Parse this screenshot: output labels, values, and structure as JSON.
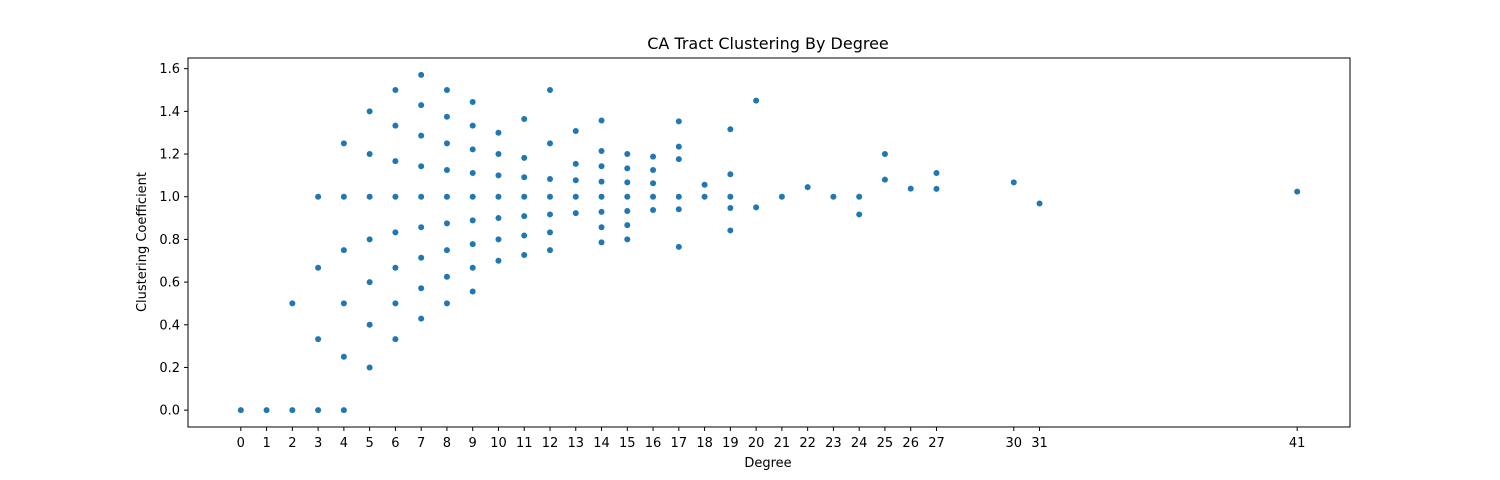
{
  "chart_data": {
    "type": "scatter",
    "title": "CA Tract Clustering By Degree",
    "xlabel": "Degree",
    "ylabel": "Clustering Coefficient",
    "xlim": [
      -2.05,
      43.05
    ],
    "ylim": [
      -0.079,
      1.65
    ],
    "xticks": [
      0,
      1,
      2,
      3,
      4,
      5,
      6,
      7,
      8,
      9,
      10,
      11,
      12,
      13,
      14,
      15,
      16,
      17,
      18,
      19,
      20,
      21,
      22,
      23,
      24,
      25,
      26,
      27,
      30,
      31,
      41
    ],
    "yticks": [
      "0.0",
      "0.2",
      "0.4",
      "0.6",
      "0.8",
      "1.0",
      "1.2",
      "1.4",
      "1.6"
    ],
    "grid": false,
    "marker_color": "#1f77b4",
    "points": [
      [
        0,
        0.0
      ],
      [
        1,
        0.0
      ],
      [
        2,
        0.0
      ],
      [
        2,
        0.5
      ],
      [
        3,
        0.0
      ],
      [
        3,
        0.333
      ],
      [
        3,
        0.667
      ],
      [
        3,
        1.0
      ],
      [
        4,
        0.0
      ],
      [
        4,
        0.25
      ],
      [
        4,
        0.5
      ],
      [
        4,
        0.75
      ],
      [
        4,
        1.0
      ],
      [
        4,
        1.25
      ],
      [
        5,
        0.2
      ],
      [
        5,
        0.4
      ],
      [
        5,
        0.6
      ],
      [
        5,
        0.8
      ],
      [
        5,
        1.0
      ],
      [
        5,
        1.2
      ],
      [
        5,
        1.4
      ],
      [
        6,
        0.333
      ],
      [
        6,
        0.5
      ],
      [
        6,
        0.667
      ],
      [
        6,
        0.833
      ],
      [
        6,
        1.0
      ],
      [
        6,
        1.167
      ],
      [
        6,
        1.333
      ],
      [
        6,
        1.5
      ],
      [
        7,
        0.429
      ],
      [
        7,
        0.571
      ],
      [
        7,
        0.714
      ],
      [
        7,
        0.857
      ],
      [
        7,
        1.0
      ],
      [
        7,
        1.143
      ],
      [
        7,
        1.286
      ],
      [
        7,
        1.429
      ],
      [
        7,
        1.571
      ],
      [
        8,
        0.5
      ],
      [
        8,
        0.625
      ],
      [
        8,
        0.75
      ],
      [
        8,
        0.875
      ],
      [
        8,
        1.0
      ],
      [
        8,
        1.125
      ],
      [
        8,
        1.25
      ],
      [
        8,
        1.375
      ],
      [
        8,
        1.5
      ],
      [
        9,
        0.556
      ],
      [
        9,
        0.667
      ],
      [
        9,
        0.778
      ],
      [
        9,
        0.889
      ],
      [
        9,
        1.0
      ],
      [
        9,
        1.111
      ],
      [
        9,
        1.222
      ],
      [
        9,
        1.333
      ],
      [
        9,
        1.444
      ],
      [
        10,
        0.7
      ],
      [
        10,
        0.8
      ],
      [
        10,
        0.9
      ],
      [
        10,
        1.0
      ],
      [
        10,
        1.1
      ],
      [
        10,
        1.2
      ],
      [
        10,
        1.3
      ],
      [
        11,
        0.727
      ],
      [
        11,
        0.818
      ],
      [
        11,
        0.909
      ],
      [
        11,
        1.0
      ],
      [
        11,
        1.091
      ],
      [
        11,
        1.182
      ],
      [
        11,
        1.364
      ],
      [
        12,
        0.75
      ],
      [
        12,
        0.833
      ],
      [
        12,
        0.917
      ],
      [
        12,
        1.0
      ],
      [
        12,
        1.083
      ],
      [
        12,
        1.25
      ],
      [
        12,
        1.5
      ],
      [
        13,
        0.923
      ],
      [
        13,
        1.0
      ],
      [
        13,
        1.077
      ],
      [
        13,
        1.154
      ],
      [
        13,
        1.308
      ],
      [
        14,
        0.786
      ],
      [
        14,
        0.857
      ],
      [
        14,
        0.929
      ],
      [
        14,
        1.0
      ],
      [
        14,
        1.071
      ],
      [
        14,
        1.143
      ],
      [
        14,
        1.214
      ],
      [
        14,
        1.357
      ],
      [
        15,
        0.8
      ],
      [
        15,
        0.867
      ],
      [
        15,
        0.933
      ],
      [
        15,
        1.0
      ],
      [
        15,
        1.067
      ],
      [
        15,
        1.133
      ],
      [
        15,
        1.2
      ],
      [
        16,
        0.938
      ],
      [
        16,
        1.0
      ],
      [
        16,
        1.063
      ],
      [
        16,
        1.125
      ],
      [
        16,
        1.188
      ],
      [
        17,
        0.765
      ],
      [
        17,
        0.941
      ],
      [
        17,
        1.0
      ],
      [
        17,
        1.176
      ],
      [
        17,
        1.235
      ],
      [
        17,
        1.353
      ],
      [
        18,
        1.0
      ],
      [
        18,
        1.056
      ],
      [
        19,
        0.842
      ],
      [
        19,
        0.947
      ],
      [
        19,
        1.0
      ],
      [
        19,
        1.105
      ],
      [
        19,
        1.316
      ],
      [
        20,
        0.95
      ],
      [
        20,
        1.45
      ],
      [
        21,
        1.0
      ],
      [
        22,
        1.045
      ],
      [
        23,
        1.0
      ],
      [
        24,
        0.917
      ],
      [
        24,
        1.0
      ],
      [
        25,
        1.08
      ],
      [
        25,
        1.2
      ],
      [
        26,
        1.038
      ],
      [
        27,
        1.037
      ],
      [
        27,
        1.111
      ],
      [
        30,
        1.067
      ],
      [
        31,
        0.968
      ],
      [
        41,
        1.024
      ]
    ]
  }
}
